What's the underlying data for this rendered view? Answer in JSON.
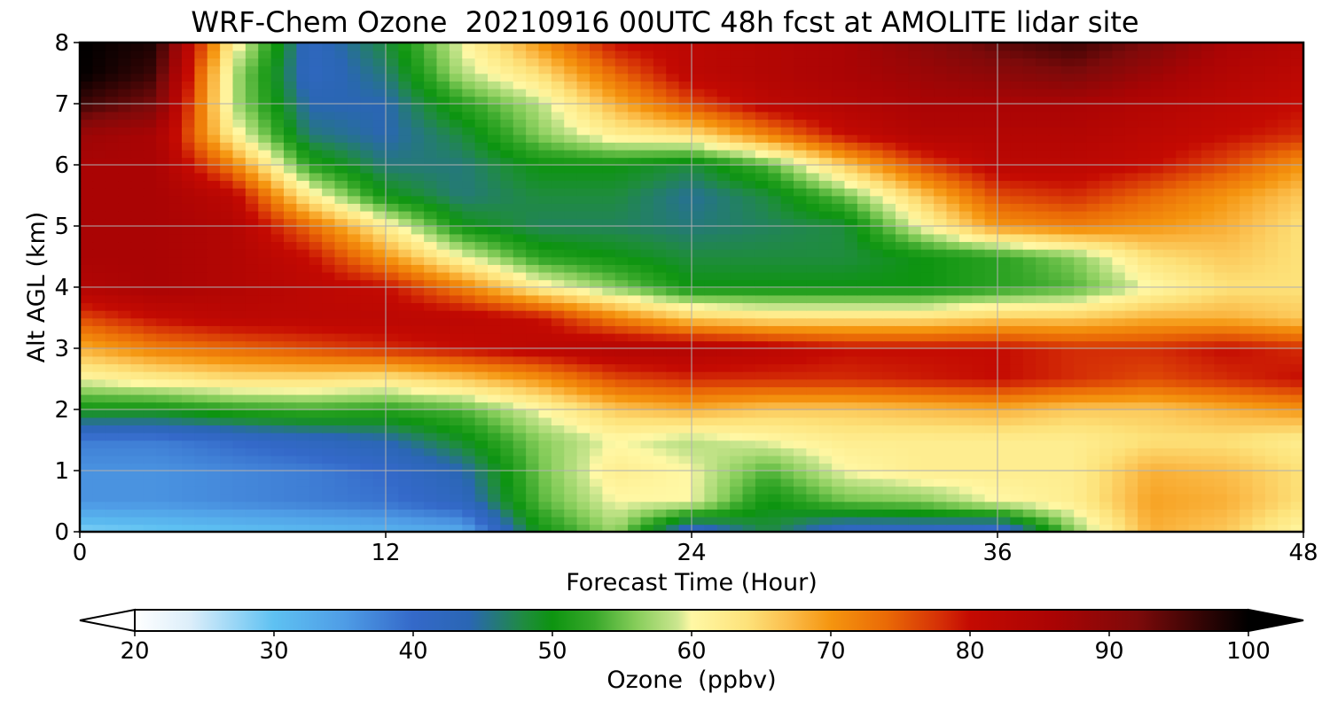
{
  "chart_data": {
    "type": "heatmap",
    "title": "WRF-Chem Ozone  20210916 00UTC 48h fcst at AMOLITE lidar site",
    "xlabel": "Forecast Time (Hour)",
    "ylabel": "Alt AGL (km)",
    "xlim": [
      0,
      48
    ],
    "ylim": [
      0,
      8
    ],
    "x_ticks": [
      "0",
      "12",
      "24",
      "36",
      "48"
    ],
    "y_ticks": [
      "0",
      "1",
      "2",
      "3",
      "4",
      "5",
      "6",
      "7",
      "8"
    ],
    "grid": true,
    "x": [
      0,
      3,
      6,
      9,
      12,
      15,
      18,
      21,
      24,
      27,
      30,
      33,
      36,
      39,
      42,
      45,
      48
    ],
    "y": [
      0,
      0.5,
      1,
      1.5,
      2,
      2.5,
      3,
      3.5,
      4,
      4.5,
      5,
      5.5,
      6,
      6.5,
      7,
      7.5,
      8
    ],
    "z_units": "ppbv",
    "values": [
      [
        28,
        29,
        30,
        31,
        32,
        33,
        50,
        57,
        40,
        48,
        40,
        40,
        38,
        56,
        68,
        66,
        60
      ],
      [
        36,
        36,
        37,
        38,
        39,
        42,
        54,
        60,
        60,
        50,
        55,
        56,
        60,
        62,
        69,
        68,
        64
      ],
      [
        36,
        36,
        37,
        38,
        40,
        44,
        55,
        62,
        60,
        54,
        60,
        62,
        62,
        62,
        68,
        67,
        64
      ],
      [
        38,
        38,
        40,
        42,
        44,
        49,
        56,
        60,
        58,
        60,
        62,
        62,
        62,
        62,
        64,
        64,
        62
      ],
      [
        50,
        50,
        52,
        53,
        52,
        54,
        60,
        66,
        68,
        66,
        66,
        67,
        68,
        66,
        66,
        68,
        70
      ],
      [
        60,
        62,
        64,
        64,
        63,
        66,
        70,
        76,
        78,
        78,
        78,
        79,
        80,
        78,
        76,
        78,
        80
      ],
      [
        68,
        72,
        74,
        76,
        78,
        80,
        82,
        84,
        84,
        82,
        80,
        80,
        80,
        78,
        78,
        80,
        78
      ],
      [
        76,
        80,
        82,
        82,
        82,
        82,
        80,
        72,
        66,
        64,
        64,
        64,
        66,
        66,
        68,
        68,
        66
      ],
      [
        84,
        86,
        84,
        82,
        80,
        72,
        62,
        56,
        50,
        50,
        50,
        50,
        52,
        54,
        60,
        64,
        64
      ],
      [
        86,
        86,
        84,
        80,
        70,
        60,
        52,
        50,
        48,
        48,
        48,
        50,
        52,
        56,
        64,
        66,
        64
      ],
      [
        86,
        86,
        84,
        74,
        62,
        50,
        47,
        47,
        46,
        47,
        48,
        60,
        70,
        72,
        70,
        68,
        64
      ],
      [
        86,
        86,
        82,
        62,
        50,
        46,
        48,
        48,
        45,
        48,
        55,
        66,
        76,
        78,
        74,
        70,
        66
      ],
      [
        86,
        86,
        72,
        52,
        46,
        46,
        50,
        50,
        48,
        54,
        66,
        76,
        82,
        82,
        80,
        76,
        70
      ],
      [
        88,
        86,
        62,
        46,
        44,
        48,
        56,
        62,
        64,
        72,
        80,
        84,
        84,
        84,
        82,
        80,
        78
      ],
      [
        96,
        92,
        58,
        44,
        44,
        52,
        58,
        68,
        76,
        82,
        84,
        86,
        86,
        86,
        84,
        82,
        80
      ],
      [
        100,
        96,
        58,
        42,
        46,
        58,
        64,
        74,
        82,
        84,
        86,
        88,
        90,
        92,
        88,
        84,
        82
      ],
      [
        100,
        98,
        62,
        42,
        48,
        60,
        70,
        80,
        82,
        84,
        86,
        90,
        94,
        96,
        92,
        86,
        84
      ]
    ],
    "colorbar": {
      "label": "Ozone  (ppbv)",
      "min": 20,
      "max": 100,
      "ticks": [
        "20",
        "30",
        "40",
        "50",
        "60",
        "70",
        "80",
        "90",
        "100"
      ],
      "extend": "both",
      "stops": [
        [
          20,
          "#ffffff"
        ],
        [
          24,
          "#dceefa"
        ],
        [
          30,
          "#5ec1f2"
        ],
        [
          35,
          "#4f9de6"
        ],
        [
          40,
          "#3469c9"
        ],
        [
          44,
          "#2a66b4"
        ],
        [
          48,
          "#1f8c3e"
        ],
        [
          50,
          "#0d9410"
        ],
        [
          53,
          "#38a82a"
        ],
        [
          56,
          "#86cd5a"
        ],
        [
          59,
          "#cbe68f"
        ],
        [
          60,
          "#fff8a5"
        ],
        [
          64,
          "#fde27a"
        ],
        [
          67,
          "#fbbd4b"
        ],
        [
          70,
          "#f5950f"
        ],
        [
          74,
          "#ea6a06"
        ],
        [
          78,
          "#d42d06"
        ],
        [
          80,
          "#c40a02"
        ],
        [
          86,
          "#aa0404"
        ],
        [
          92,
          "#7d0a0a"
        ],
        [
          97,
          "#2d0404"
        ],
        [
          100,
          "#000000"
        ]
      ]
    }
  }
}
